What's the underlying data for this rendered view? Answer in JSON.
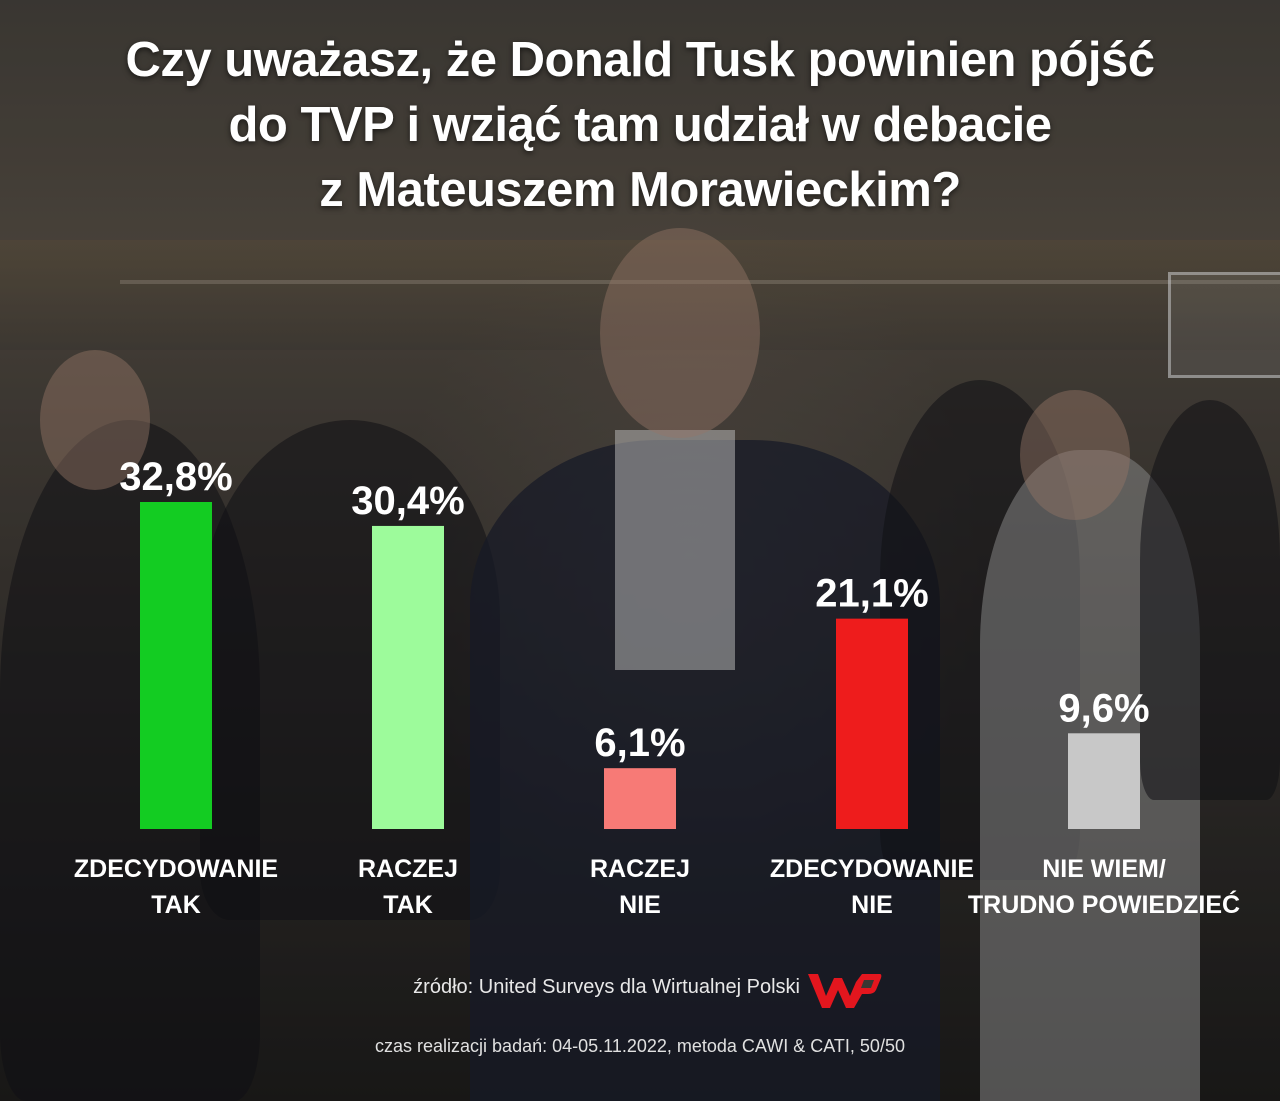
{
  "title": "Czy uważasz, że Donald Tusk powinien pójść do TVP i wziąć tam udział w debacie z Mateuszem Morawieckim?",
  "title_lines": [
    "Czy uważasz, że Donald Tusk powinien pójść",
    "do TVP i wziąć tam udział w debacie",
    "z Mateuszem Morawieckim?"
  ],
  "chart_data": {
    "type": "bar",
    "categories": [
      [
        "ZDECYDOWANIE",
        "TAK"
      ],
      [
        "RACZEJ",
        "TAK"
      ],
      [
        "RACZEJ",
        "NIE"
      ],
      [
        "ZDECYDOWANIE",
        "NIE"
      ],
      [
        "NIE WIEM/",
        "TRUDNO POWIEDZIEĆ"
      ]
    ],
    "values": [
      32.8,
      30.4,
      6.1,
      21.1,
      9.6
    ],
    "value_labels": [
      "32,8%",
      "30,4%",
      "6,1%",
      "21,1%",
      "9,6%"
    ],
    "colors": [
      "#13cc22",
      "#9dfb9b",
      "#f77a76",
      "#ee1c1c",
      "#c8c8c8"
    ],
    "unit": "%",
    "grid": false,
    "legend": "none",
    "ylim": [
      0,
      32.8
    ]
  },
  "source": "źródło: United Surveys dla Wirtualnej Polski",
  "logo_text": "WP",
  "logo_icon": "wp-logo-icon",
  "brand_color": "#e3161e",
  "method": "czas realizacji badań: 04-05.11.2022, metoda CAWI & CATI, 50/50"
}
